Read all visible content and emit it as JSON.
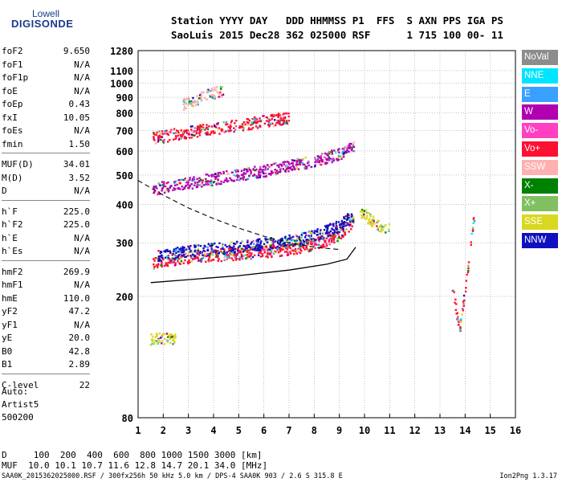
{
  "logo": {
    "line1": "Lowell",
    "line2": "DIGISONDE"
  },
  "header": {
    "line1": "Station YYYY DAY   DDD HHMMSS P1  FFS  S AXN PPS IGA PS",
    "line2": "SaoLuis 2015 Dec28 362 025000 RSF      1 715 100 00- 11"
  },
  "params": {
    "g1": [
      [
        "foF2",
        "9.650"
      ],
      [
        "foF1",
        "N/A"
      ],
      [
        "foF1p",
        "N/A"
      ],
      [
        "foE",
        "N/A"
      ],
      [
        "foEp",
        "0.43"
      ],
      [
        "fxI",
        "10.05"
      ],
      [
        "foEs",
        "N/A"
      ],
      [
        "fmin",
        "1.50"
      ]
    ],
    "g2": [
      [
        "MUF(D)",
        "34.01"
      ],
      [
        "M(D)",
        "3.52"
      ],
      [
        "D",
        "N/A"
      ]
    ],
    "g3": [
      [
        "h`F",
        "225.0"
      ],
      [
        "h`F2",
        "225.0"
      ],
      [
        "h`E",
        "N/A"
      ],
      [
        "h`Es",
        "N/A"
      ]
    ],
    "g4": [
      [
        "hmF2",
        "269.9"
      ],
      [
        "hmF1",
        "N/A"
      ],
      [
        "hmE",
        "110.0"
      ],
      [
        "yF2",
        "47.2"
      ],
      [
        "yF1",
        "N/A"
      ],
      [
        "yE",
        "20.0"
      ],
      [
        "B0",
        "42.8"
      ],
      [
        "B1",
        "2.89"
      ]
    ],
    "g5": [
      [
        "C-level",
        "22"
      ]
    ]
  },
  "info": {
    "auto": "Auto:",
    "artist": "Artist5",
    "version": "500200"
  },
  "legend": [
    {
      "label": "NoVal",
      "color": "#8c8c8c"
    },
    {
      "label": "NNE",
      "color": "#00e5ff"
    },
    {
      "label": "E",
      "color": "#3aa0ff"
    },
    {
      "label": "W",
      "color": "#b000b0"
    },
    {
      "label": "Vo-",
      "color": "#ff40c0"
    },
    {
      "label": "Vo+",
      "color": "#ff1030"
    },
    {
      "label": "SSW",
      "color": "#ffb0b0"
    },
    {
      "label": "X-",
      "color": "#008000"
    },
    {
      "label": "X+",
      "color": "#80c060"
    },
    {
      "label": "SSE",
      "color": "#d8d820"
    },
    {
      "label": "NNW",
      "color": "#1010c0"
    }
  ],
  "bottom": {
    "d_line": "D     100  200  400  600  800 1000 1500 3000 [km]",
    "muf_line": "MUF  10.0 10.1 10.7 11.6 12.8 14.7 20.1 34.0 [MHz]"
  },
  "footer": {
    "left": "SAA0K_2015362025000.RSF / 300fx256h 50 kHz 5.0 km / DPS-4 SAA0K 903 / 2.6 S 315.8 E",
    "right": "Ion2Png 1.3.17"
  },
  "chart_data": {
    "type": "scatter",
    "title": "",
    "xlabel": "",
    "ylabel": "",
    "xlim": [
      1,
      16
    ],
    "ylim": [
      80,
      1280
    ],
    "y_scale": "log",
    "grid": true,
    "x_ticks": [
      1,
      2,
      3,
      4,
      5,
      6,
      7,
      8,
      9,
      10,
      11,
      12,
      13,
      14,
      15,
      16
    ],
    "y_ticks": [
      80,
      200,
      300,
      400,
      500,
      600,
      700,
      800,
      900,
      1000,
      1100,
      1280
    ],
    "traces": [
      {
        "name": "F2 O-trace (Vo+)",
        "color": "#ff1030",
        "points": [
          [
            1.6,
            255
          ],
          [
            2,
            262
          ],
          [
            3,
            268
          ],
          [
            4,
            272
          ],
          [
            5,
            276
          ],
          [
            6,
            280
          ],
          [
            7,
            286
          ],
          [
            8,
            296
          ],
          [
            8.8,
            312
          ],
          [
            9.3,
            330
          ],
          [
            9.6,
            350
          ]
        ]
      },
      {
        "name": "F2 X-trace (NNW)",
        "color": "#1010c0",
        "points": [
          [
            1.8,
            272
          ],
          [
            3,
            280
          ],
          [
            4,
            286
          ],
          [
            5,
            290
          ],
          [
            6,
            296
          ],
          [
            7,
            303
          ],
          [
            8,
            315
          ],
          [
            9,
            340
          ],
          [
            9.6,
            370
          ]
        ]
      },
      {
        "name": "2nd hop (W)",
        "color": "#b000b0",
        "points": [
          [
            1.6,
            450
          ],
          [
            3,
            470
          ],
          [
            4,
            485
          ],
          [
            5,
            500
          ],
          [
            6,
            515
          ],
          [
            7,
            535
          ],
          [
            8,
            555
          ],
          [
            9,
            585
          ],
          [
            9.6,
            620
          ]
        ]
      },
      {
        "name": "3rd hop (Vo+)",
        "color": "#ff1030",
        "points": [
          [
            1.6,
            660
          ],
          [
            2.5,
            680
          ],
          [
            4,
            710
          ],
          [
            5.5,
            740
          ],
          [
            7,
            770
          ]
        ]
      },
      {
        "name": "4th hop",
        "color": "#ffb0b0",
        "points": [
          [
            2.8,
            850
          ],
          [
            3.5,
            900
          ],
          [
            4.4,
            950
          ]
        ]
      },
      {
        "name": "E-layer echoes (SSE)",
        "color": "#d8d820",
        "points": [
          [
            1.5,
            145
          ],
          [
            2.0,
            145
          ],
          [
            2.5,
            146
          ]
        ]
      },
      {
        "name": "Spread F (SSE)",
        "color": "#d8d820",
        "points": [
          [
            9.8,
            380
          ],
          [
            10.2,
            360
          ],
          [
            10.6,
            340
          ],
          [
            11,
            330
          ]
        ]
      },
      {
        "name": "Isolated echoes",
        "color": "#ff1030",
        "points": [
          [
            13.5,
            215
          ],
          [
            13.8,
            155
          ],
          [
            14.4,
            380
          ]
        ]
      }
    ],
    "profile_curve": [
      [
        1.5,
        222
      ],
      [
        3,
        227
      ],
      [
        5,
        234
      ],
      [
        7,
        244
      ],
      [
        8.5,
        255
      ],
      [
        9.3,
        265
      ],
      [
        9.65,
        290
      ]
    ],
    "profile_dashed": [
      [
        1.0,
        480
      ],
      [
        2,
        430
      ],
      [
        3,
        390
      ],
      [
        4,
        360
      ],
      [
        5,
        335
      ],
      [
        6,
        315
      ],
      [
        7,
        300
      ],
      [
        8,
        290
      ],
      [
        9,
        285
      ]
    ]
  }
}
